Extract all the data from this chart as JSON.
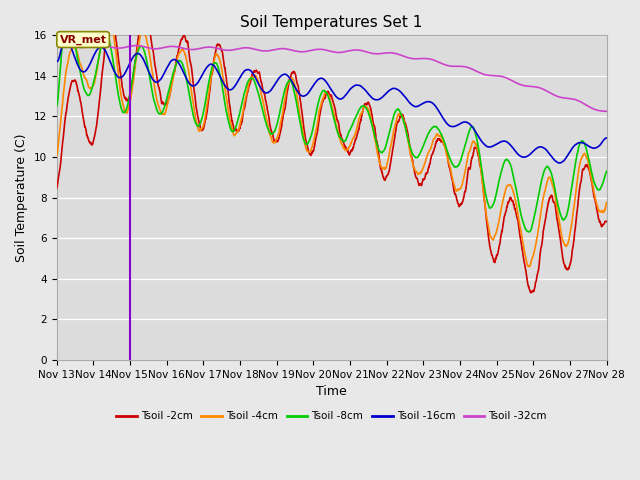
{
  "title": "Soil Temperatures Set 1",
  "xlabel": "Time",
  "ylabel": "Soil Temperature (C)",
  "ylim": [
    0,
    16
  ],
  "xlim": [
    0,
    360
  ],
  "xtick_labels": [
    "Nov 13",
    "Nov 14",
    "Nov 15",
    "Nov 16",
    "Nov 17",
    "Nov 18",
    "Nov 19",
    "Nov 20",
    "Nov 21",
    "Nov 22",
    "Nov 23",
    "Nov 24",
    "Nov 25",
    "Nov 26",
    "Nov 27",
    "Nov 28"
  ],
  "xtick_positions": [
    0,
    24,
    48,
    72,
    96,
    120,
    144,
    168,
    192,
    216,
    240,
    264,
    288,
    312,
    336,
    360
  ],
  "vline_x": 48,
  "vline_color": "#8800cc",
  "annotation_text": "VR_met",
  "series": [
    {
      "label": "Tsoil -2cm",
      "color": "#cc0000"
    },
    {
      "label": "Tsoil -4cm",
      "color": "#ff8800"
    },
    {
      "label": "Tsoil -8cm",
      "color": "#00cc00"
    },
    {
      "label": "Tsoil -16cm",
      "color": "#0000cc"
    },
    {
      "label": "Tsoil -32cm",
      "color": "#cc44cc"
    }
  ],
  "background_color": "#dcdcdc",
  "grid_color": "#ffffff",
  "fig_facecolor": "#e8e8e8",
  "title_fontsize": 11,
  "axis_fontsize": 9,
  "tick_fontsize": 7.5
}
